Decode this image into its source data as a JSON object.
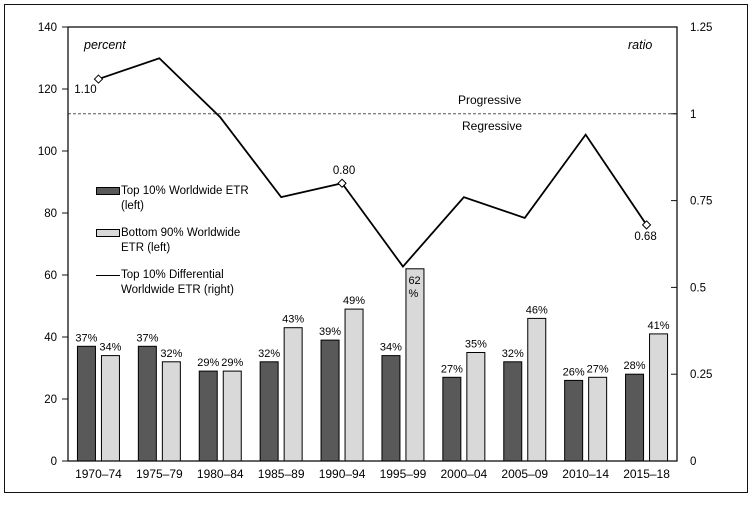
{
  "figure": {
    "left_axis_title": "percent",
    "right_axis_title": "ratio",
    "threshold_above_label": "Progressive",
    "threshold_below_label": "Regressive"
  },
  "legend": {
    "items": [
      {
        "swatch": "bar-dark",
        "line1": "Top 10% Worldwide ETR",
        "line2": "(left)"
      },
      {
        "swatch": "bar-light",
        "line1": "Bottom 90% Worldwide",
        "line2": "ETR (left)"
      },
      {
        "swatch": "line",
        "line1": "Top 10% Differential",
        "line2": "Worldwide ETR (right)"
      }
    ]
  },
  "colors": {
    "bar_dark": "#595959",
    "bar_light": "#d9d9d9",
    "bar_stroke": "#000000",
    "line": "#000000",
    "threshold_dash": "#555555",
    "axis": "#111111"
  },
  "chart_data": {
    "type": "bar+line combo",
    "categories": [
      "1970–74",
      "1975–79",
      "1980–84",
      "1985–89",
      "1990–94",
      "1995–99",
      "2000–04",
      "2005–09",
      "2010–14",
      "2015–18"
    ],
    "left_axis": {
      "title": "percent",
      "min": 0,
      "max": 140,
      "ticks": [
        0,
        20,
        40,
        60,
        80,
        100,
        120,
        140
      ]
    },
    "right_axis": {
      "title": "ratio",
      "min": 0,
      "max": 1.25,
      "ticks": [
        0,
        0.25,
        0.5,
        0.75,
        1,
        1.25
      ],
      "tick_labels": [
        "0",
        "0.25",
        "0.5",
        "0.75",
        "1",
        "1.25"
      ]
    },
    "threshold_line": {
      "axis": "right",
      "value": 1,
      "style": "dashed"
    },
    "series": [
      {
        "key": "top10_etr",
        "name": "Top 10% Worldwide ETR (left)",
        "type": "bar",
        "axis": "left",
        "values": [
          37,
          37,
          29,
          32,
          39,
          34,
          27,
          32,
          26,
          28
        ],
        "labels": [
          "37%",
          "37%",
          "29%",
          "32%",
          "39%",
          "34%",
          "27%",
          "32%",
          "26%",
          "28%"
        ]
      },
      {
        "key": "bottom90_etr",
        "name": "Bottom 90% Worldwide ETR (left)",
        "type": "bar",
        "axis": "left",
        "values": [
          34,
          32,
          29,
          43,
          49,
          62,
          35,
          46,
          27,
          41
        ],
        "labels": [
          "34%",
          "32%",
          "29%",
          "43%",
          "49%",
          "62%",
          "35%",
          "46%",
          "27%",
          "41%"
        ],
        "inside_label_indices": [
          5
        ]
      },
      {
        "key": "top10_differential",
        "name": "Top 10% Differential Worldwide ETR (right)",
        "type": "line",
        "axis": "right",
        "values": [
          1.1,
          1.16,
          0.99,
          0.76,
          0.8,
          0.56,
          0.76,
          0.7,
          0.94,
          0.68
        ],
        "point_labels": [
          {
            "index": 0,
            "text": "1.10",
            "position": "below-left"
          },
          {
            "index": 4,
            "text": "0.80",
            "position": "above"
          },
          {
            "index": 9,
            "text": "0.68",
            "position": "below"
          }
        ]
      }
    ],
    "legend_position": "middle-left inside plot",
    "grid": false
  }
}
